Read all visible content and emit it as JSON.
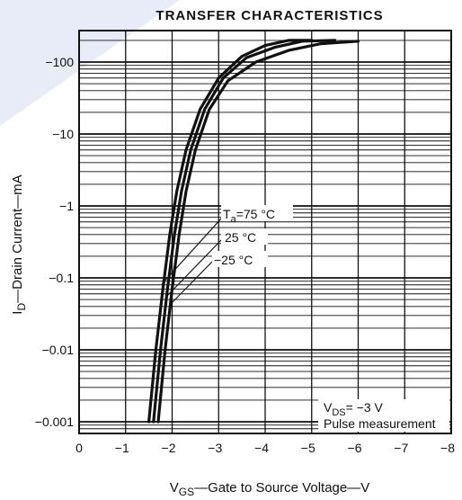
{
  "chart_data": {
    "type": "line",
    "title": "TRANSFER CHARACTERISTICS",
    "xlabel": {
      "main": "V",
      "sub": "GS",
      "rest": "—Gate to Source Voltage—V"
    },
    "ylabel": {
      "main": "I",
      "sub": "D",
      "rest": "—Drain Current—mA"
    },
    "x_ticks": [
      0,
      -1,
      -2,
      -3,
      -4,
      -5,
      -6,
      -7,
      -8
    ],
    "x_tick_labels": [
      "0",
      "−1",
      "−2",
      "−3",
      "−4",
      "−5",
      "−6",
      "−7",
      "−8"
    ],
    "xlim": [
      0,
      -8
    ],
    "y_scale": "log",
    "ylim": [
      -0.001,
      -200
    ],
    "y_ticks": [
      -0.001,
      -0.01,
      -0.1,
      -1,
      -10,
      -100
    ],
    "y_tick_labels": [
      "−0.001",
      "−0.01",
      "−0.1",
      "−1",
      "−10",
      "−100"
    ],
    "grid": true,
    "series": [
      {
        "label_ref": "ta_75",
        "x": [
          -1.5,
          -1.65,
          -1.8,
          -1.95,
          -2.1,
          -2.3,
          -2.6,
          -3.0,
          -3.5,
          -4.0,
          -4.5,
          -5.0
        ],
        "y": [
          -0.001,
          -0.01,
          -0.07,
          -0.4,
          -1.6,
          -6,
          -22,
          -60,
          -120,
          -170,
          -200,
          -200
        ]
      },
      {
        "label_ref": "ta_25",
        "x": [
          -1.6,
          -1.75,
          -1.9,
          -2.05,
          -2.2,
          -2.4,
          -2.7,
          -3.1,
          -3.6,
          -4.2,
          -4.8,
          -5.5
        ],
        "y": [
          -0.001,
          -0.01,
          -0.07,
          -0.4,
          -1.6,
          -6,
          -22,
          -60,
          -115,
          -160,
          -195,
          -200
        ]
      },
      {
        "label_ref": "ta_m25",
        "x": [
          -1.7,
          -1.85,
          -2.0,
          -2.15,
          -2.3,
          -2.5,
          -2.8,
          -3.2,
          -3.8,
          -4.5,
          -5.2,
          -6.0
        ],
        "y": [
          -0.001,
          -0.01,
          -0.07,
          -0.4,
          -1.6,
          -6,
          -22,
          -55,
          -100,
          -145,
          -180,
          -195
        ]
      }
    ],
    "labels": {
      "ta_75": {
        "main": "T",
        "sub": "a",
        "rest": "=75 °C"
      },
      "ta_25": "25 °C",
      "ta_m25": "−25 °C"
    },
    "annotation": {
      "vds": {
        "main": "V",
        "sub": "DS",
        "rest": "= −3 V"
      },
      "pulse": "Pulse measurement"
    }
  }
}
